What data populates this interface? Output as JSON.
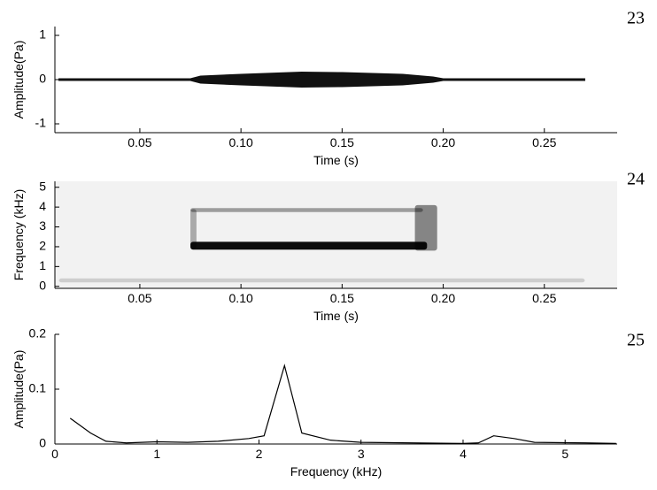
{
  "chart_data": [
    {
      "type": "envelope",
      "label": "23",
      "xlabel": "Time (s)",
      "ylabel": "Amplitude(Pa)",
      "xlim": [
        0.008,
        0.286
      ],
      "ylim": [
        -1.2,
        1.2
      ],
      "xticks": [
        0.05,
        {
          "value": 0.1,
          "label": "0.10"
        },
        0.15,
        {
          "value": 0.2,
          "label": "0.20"
        },
        0.25
      ],
      "yticks": [
        -1,
        0,
        1
      ],
      "color": "#111111",
      "x": [
        0.01,
        0.05,
        0.075,
        0.08,
        0.1,
        0.13,
        0.15,
        0.18,
        0.19,
        0.195,
        0.2,
        0.25,
        0.27
      ],
      "upper": [
        0.02,
        0.02,
        0.02,
        0.08,
        0.12,
        0.17,
        0.16,
        0.12,
        0.08,
        0.06,
        0.02,
        0.02,
        0.02
      ],
      "lower": [
        -0.02,
        -0.02,
        -0.02,
        -0.08,
        -0.12,
        -0.17,
        -0.16,
        -0.12,
        -0.08,
        -0.06,
        -0.02,
        -0.02,
        -0.02
      ]
    },
    {
      "type": "spectrogram",
      "label": "24",
      "xlabel": "Time (s)",
      "ylabel": "Frequency (kHz)",
      "xlim": [
        0.008,
        0.286
      ],
      "ylim": [
        -0.1,
        5.3
      ],
      "xticks": [
        0.05,
        {
          "value": 0.1,
          "label": "0.10"
        },
        0.15,
        {
          "value": 0.2,
          "label": "0.20"
        },
        0.25
      ],
      "yticks": [
        0,
        1,
        2,
        3,
        4,
        5
      ],
      "color": "#000000",
      "traces": [
        {
          "x0": 0.01,
          "x1": 0.27,
          "y0": 0.2,
          "y1": 0.4,
          "level": 0.15
        },
        {
          "x0": 0.075,
          "x1": 0.192,
          "y0": 1.85,
          "y1": 2.25,
          "level": 0.95
        },
        {
          "x0": 0.075,
          "x1": 0.19,
          "y0": 3.75,
          "y1": 3.95,
          "level": 0.35
        },
        {
          "x0": 0.075,
          "x1": 0.078,
          "y0": 1.9,
          "y1": 3.9,
          "level": 0.3
        },
        {
          "x0": 0.186,
          "x1": 0.197,
          "y0": 1.8,
          "y1": 4.1,
          "level": 0.45
        }
      ]
    },
    {
      "type": "line",
      "label": "25",
      "xlabel": "Frequency (kHz)",
      "ylabel": "Amplitude(Pa)",
      "xlim": [
        0,
        5.51
      ],
      "ylim": [
        0,
        0.2
      ],
      "xticks": [
        0,
        1,
        2,
        3,
        4,
        5
      ],
      "yticks": [
        0,
        0.1,
        0.2
      ],
      "color": "#000000",
      "x": [
        0.15,
        0.35,
        0.5,
        0.7,
        1.0,
        1.3,
        1.6,
        1.9,
        2.05,
        2.25,
        2.42,
        2.7,
        3.0,
        3.5,
        4.0,
        4.15,
        4.3,
        4.5,
        4.7,
        5.2,
        5.5
      ],
      "values": [
        0.047,
        0.02,
        0.005,
        0.002,
        0.004,
        0.003,
        0.005,
        0.01,
        0.015,
        0.143,
        0.02,
        0.007,
        0.003,
        0.002,
        0.001,
        0.002,
        0.015,
        0.01,
        0.003,
        0.002,
        0.001
      ]
    }
  ]
}
